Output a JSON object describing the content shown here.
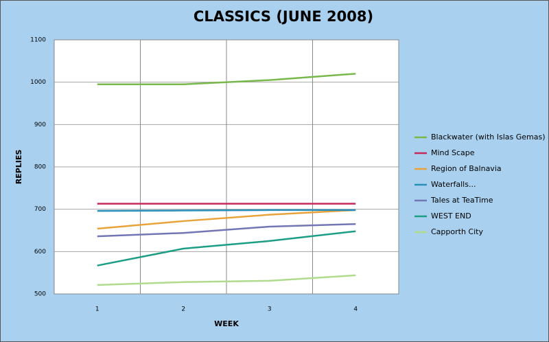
{
  "chart_data": {
    "type": "line",
    "title": "CLASSICS (JUNE 2008)",
    "x_label": "WEEK",
    "y_label": "REPLIES",
    "categories": [
      "1",
      "2",
      "3",
      "4"
    ],
    "ylim": [
      500,
      1100
    ],
    "yticks": [
      500,
      600,
      700,
      800,
      900,
      1000,
      1100
    ],
    "grid": true,
    "legend": "right",
    "series": [
      {
        "name": "Blackwater (with Islas Gemas)",
        "color": "#77b84a",
        "values": [
          995,
          995,
          1005,
          1020
        ]
      },
      {
        "name": "Mind Scape",
        "color": "#c8275a",
        "values": [
          713,
          713,
          713,
          713
        ]
      },
      {
        "name": "Region of Balnavia",
        "color": "#e8a33a",
        "values": [
          654,
          672,
          687,
          698
        ]
      },
      {
        "name": "Waterfalls...",
        "color": "#2a8fb8",
        "values": [
          696,
          697,
          698,
          698
        ]
      },
      {
        "name": "Tales at TeaTime",
        "color": "#7276b4",
        "values": [
          636,
          644,
          659,
          665
        ]
      },
      {
        "name": "WEST END",
        "color": "#1c9d85",
        "values": [
          567,
          607,
          625,
          648
        ]
      },
      {
        "name": "Capporth City",
        "color": "#b0db8c",
        "values": [
          521,
          528,
          531,
          544
        ]
      }
    ]
  }
}
